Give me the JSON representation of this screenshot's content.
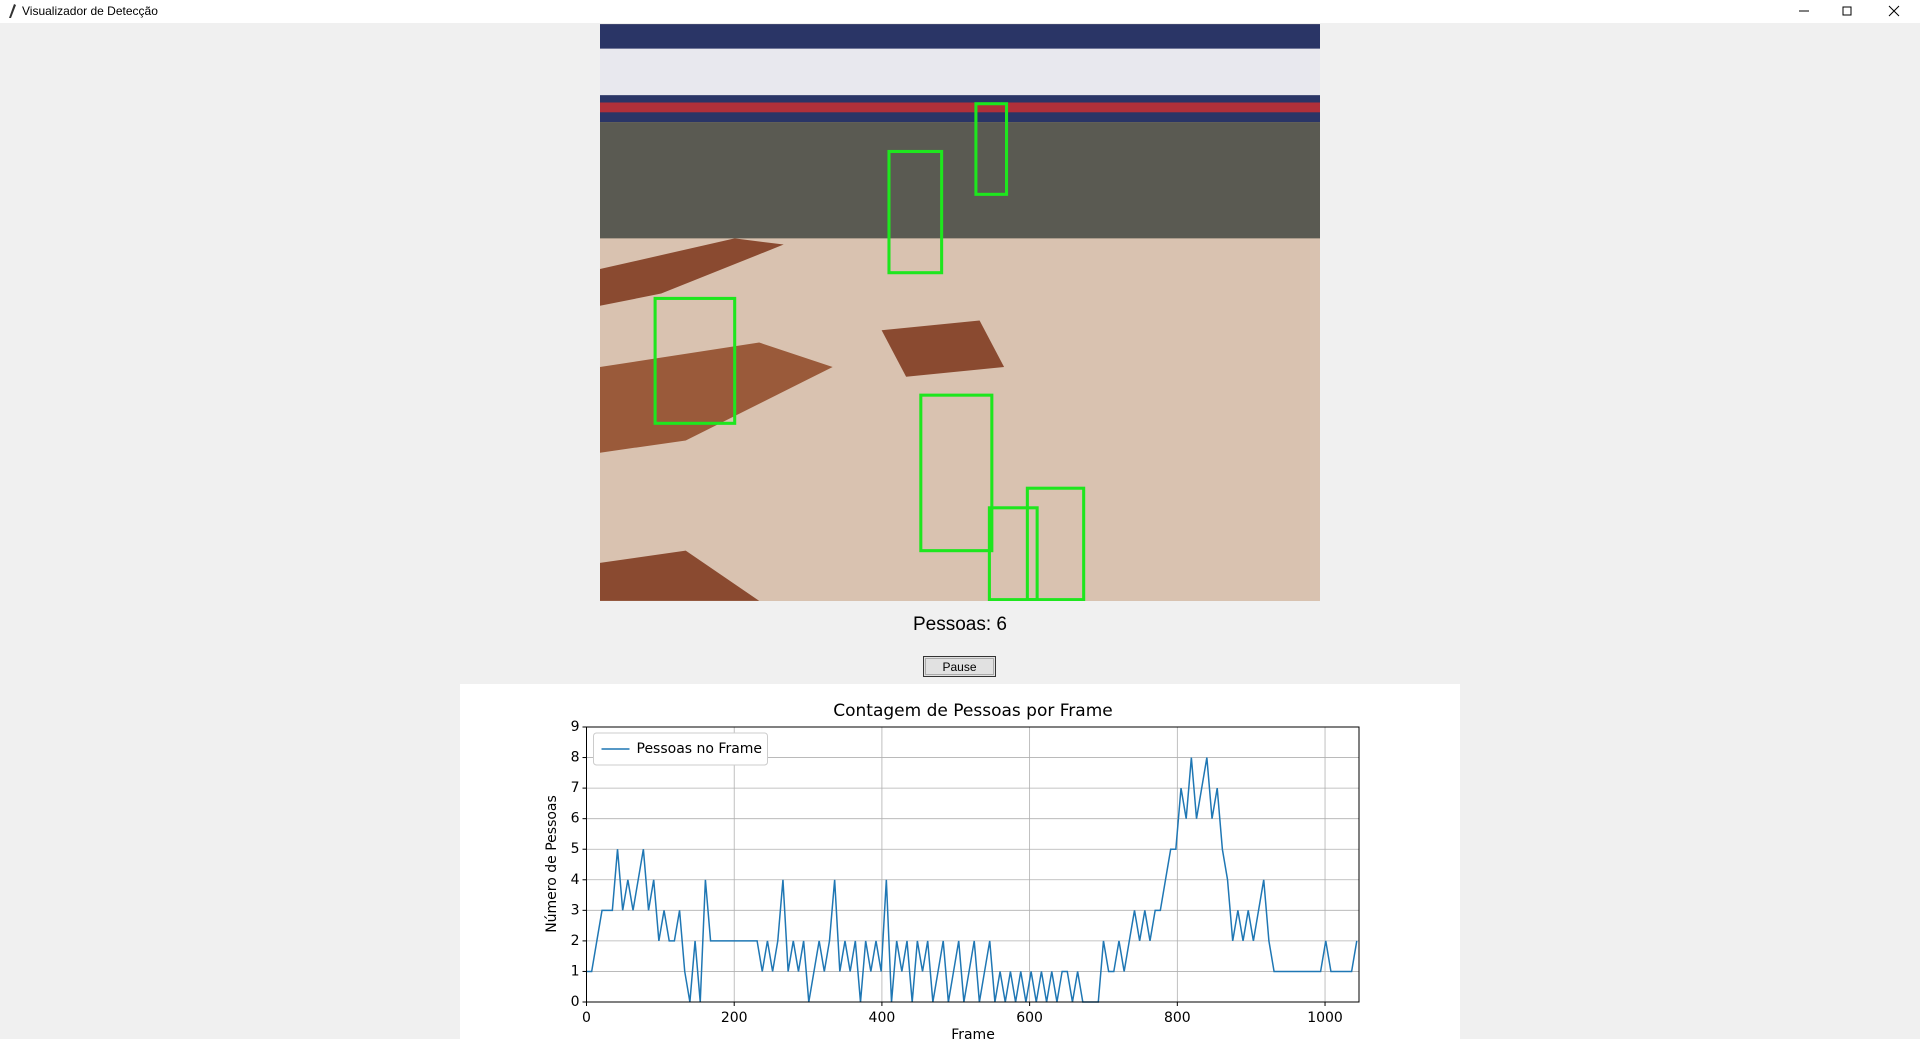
{
  "window": {
    "title": "Visualizador de Detecção"
  },
  "count_label": "Pessoas: 6",
  "button": "Pause",
  "chart_data": {
    "type": "line",
    "title": "Contagem de Pessoas por Frame",
    "x_label": "Frame",
    "y_label": "Número de Pessoas",
    "x": [
      0,
      7,
      14,
      21,
      28,
      35,
      42,
      49,
      56,
      63,
      70,
      77,
      84,
      91,
      98,
      105,
      112,
      119,
      126,
      133,
      140,
      147,
      154,
      161,
      168,
      175,
      182,
      189,
      196,
      203,
      210,
      217,
      224,
      231,
      238,
      245,
      252,
      259,
      266,
      273,
      280,
      287,
      294,
      301,
      308,
      315,
      322,
      329,
      336,
      343,
      350,
      357,
      364,
      371,
      378,
      385,
      392,
      399,
      406,
      413,
      420,
      427,
      434,
      441,
      448,
      455,
      462,
      469,
      476,
      483,
      490,
      497,
      504,
      511,
      518,
      525,
      532,
      539,
      546,
      553,
      560,
      567,
      574,
      581,
      588,
      595,
      602,
      609,
      616,
      623,
      630,
      637,
      644,
      651,
      658,
      665,
      672,
      679,
      686,
      693,
      700,
      707,
      714,
      721,
      728,
      735,
      742,
      749,
      756,
      763,
      770,
      777,
      784,
      791,
      798,
      805,
      812,
      819,
      826,
      833,
      840,
      847,
      854,
      861,
      868,
      875,
      882,
      889,
      896,
      903,
      910,
      917,
      924,
      931,
      938,
      945,
      952,
      959,
      966,
      973,
      980,
      987,
      994,
      1001,
      1008,
      1015,
      1022,
      1029,
      1036,
      1043
    ],
    "series": [
      {
        "name": "Pessoas no Frame",
        "color": "#1f77b4",
        "values": [
          1,
          1,
          2,
          3,
          3,
          3,
          5,
          3,
          4,
          3,
          4,
          5,
          3,
          4,
          2,
          3,
          2,
          2,
          3,
          1,
          0,
          2,
          0,
          4,
          2,
          2,
          2,
          2,
          2,
          2,
          2,
          2,
          2,
          2,
          1,
          2,
          1,
          2,
          4,
          1,
          2,
          1,
          2,
          0,
          1,
          2,
          1,
          2,
          4,
          1,
          2,
          1,
          2,
          0,
          2,
          1,
          2,
          1,
          4,
          0,
          2,
          1,
          2,
          0,
          2,
          1,
          2,
          0,
          1,
          2,
          0,
          1,
          2,
          0,
          1,
          2,
          0,
          1,
          2,
          0,
          1,
          0,
          1,
          0,
          1,
          0,
          1,
          0,
          1,
          0,
          1,
          0,
          1,
          1,
          0,
          1,
          0,
          0,
          0,
          0,
          2,
          1,
          1,
          2,
          1,
          2,
          3,
          2,
          3,
          2,
          3,
          3,
          4,
          5,
          5,
          7,
          6,
          8,
          6,
          7,
          8,
          6,
          7,
          5,
          4,
          2,
          3,
          2,
          3,
          2,
          3,
          4,
          2,
          1,
          1,
          1,
          1,
          1,
          1,
          1,
          1,
          1,
          1,
          2,
          1,
          1,
          1,
          1,
          1,
          2
        ]
      }
    ],
    "xlim": [
      0,
      1046
    ],
    "ylim": [
      0,
      9
    ],
    "xticks": [
      0,
      200,
      400,
      600,
      800,
      1000
    ],
    "yticks": [
      0,
      1,
      2,
      3,
      4,
      5,
      6,
      7,
      8,
      9
    ],
    "grid": true,
    "legend": "upper left"
  }
}
